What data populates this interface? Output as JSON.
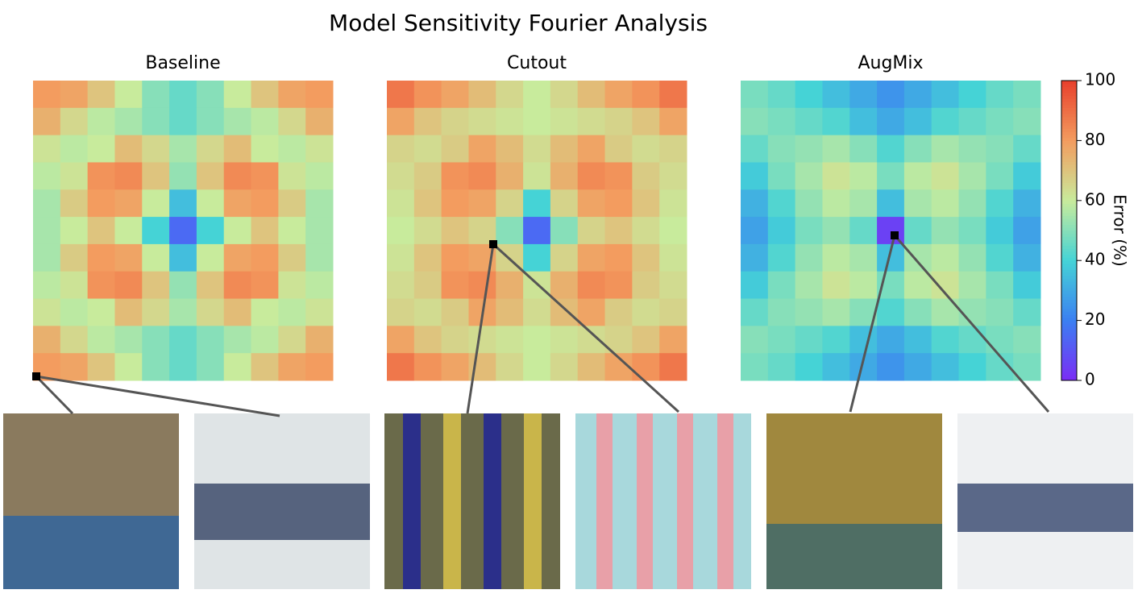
{
  "chart_data": {
    "type": "heatmap",
    "title": "Model Sensitivity Fourier Analysis",
    "colormap": [
      "#7b2cf5",
      "#3b7ff2",
      "#45d3d6",
      "#c8eb9c",
      "#f39c5f",
      "#e8402c"
    ],
    "clim": [
      0,
      100
    ],
    "colorbar_ticks": [
      0,
      20,
      40,
      60,
      80,
      100
    ],
    "colorbar_label": "Error (%)",
    "panels": [
      {
        "title": "Baseline",
        "values": [
          [
            80,
            78,
            70,
            60,
            50,
            45,
            50,
            60,
            70,
            78,
            80
          ],
          [
            75,
            65,
            58,
            55,
            50,
            45,
            50,
            55,
            58,
            65,
            75
          ],
          [
            62,
            58,
            60,
            72,
            65,
            55,
            65,
            72,
            60,
            58,
            62
          ],
          [
            58,
            62,
            82,
            84,
            70,
            52,
            70,
            84,
            82,
            62,
            58
          ],
          [
            55,
            68,
            80,
            78,
            60,
            35,
            60,
            78,
            80,
            68,
            55
          ],
          [
            55,
            60,
            70,
            60,
            40,
            15,
            40,
            60,
            70,
            60,
            55
          ],
          [
            55,
            68,
            80,
            78,
            60,
            35,
            60,
            78,
            80,
            68,
            55
          ],
          [
            58,
            62,
            82,
            84,
            70,
            52,
            70,
            84,
            82,
            62,
            58
          ],
          [
            62,
            58,
            60,
            72,
            65,
            55,
            65,
            72,
            60,
            58,
            62
          ],
          [
            75,
            65,
            58,
            55,
            50,
            45,
            50,
            55,
            58,
            65,
            75
          ],
          [
            80,
            78,
            70,
            60,
            50,
            45,
            50,
            60,
            70,
            78,
            80
          ]
        ]
      },
      {
        "title": "Cutout",
        "values": [
          [
            88,
            82,
            78,
            72,
            65,
            60,
            65,
            72,
            78,
            82,
            88
          ],
          [
            78,
            70,
            66,
            64,
            62,
            60,
            62,
            64,
            66,
            70,
            78
          ],
          [
            66,
            64,
            68,
            78,
            72,
            64,
            72,
            78,
            68,
            64,
            66
          ],
          [
            64,
            68,
            82,
            84,
            75,
            62,
            75,
            84,
            82,
            68,
            64
          ],
          [
            62,
            70,
            80,
            78,
            66,
            40,
            66,
            78,
            80,
            70,
            62
          ],
          [
            60,
            64,
            70,
            66,
            50,
            15,
            50,
            66,
            70,
            64,
            60
          ],
          [
            62,
            70,
            80,
            78,
            66,
            40,
            66,
            78,
            80,
            70,
            62
          ],
          [
            64,
            68,
            82,
            84,
            75,
            62,
            75,
            84,
            82,
            68,
            64
          ],
          [
            66,
            64,
            68,
            78,
            72,
            64,
            72,
            78,
            68,
            64,
            66
          ],
          [
            78,
            70,
            66,
            64,
            62,
            60,
            62,
            64,
            66,
            70,
            78
          ],
          [
            88,
            82,
            78,
            72,
            65,
            60,
            65,
            72,
            78,
            82,
            88
          ]
        ]
      },
      {
        "title": "AugMix",
        "values": [
          [
            48,
            45,
            40,
            35,
            30,
            25,
            30,
            35,
            40,
            45,
            48
          ],
          [
            50,
            48,
            45,
            42,
            35,
            30,
            35,
            42,
            45,
            48,
            50
          ],
          [
            45,
            50,
            52,
            55,
            50,
            42,
            50,
            55,
            52,
            50,
            45
          ],
          [
            38,
            48,
            55,
            62,
            58,
            48,
            58,
            62,
            55,
            48,
            38
          ],
          [
            32,
            42,
            52,
            58,
            55,
            35,
            55,
            58,
            52,
            42,
            32
          ],
          [
            28,
            38,
            48,
            52,
            45,
            5,
            45,
            52,
            48,
            38,
            28
          ],
          [
            32,
            42,
            52,
            58,
            55,
            35,
            55,
            58,
            52,
            42,
            32
          ],
          [
            38,
            48,
            55,
            62,
            58,
            48,
            58,
            62,
            55,
            48,
            38
          ],
          [
            45,
            50,
            52,
            55,
            50,
            42,
            50,
            55,
            52,
            50,
            45
          ],
          [
            50,
            48,
            45,
            42,
            35,
            30,
            35,
            42,
            45,
            48,
            50
          ],
          [
            48,
            45,
            40,
            35,
            30,
            25,
            30,
            35,
            40,
            45,
            48
          ]
        ]
      }
    ]
  }
}
